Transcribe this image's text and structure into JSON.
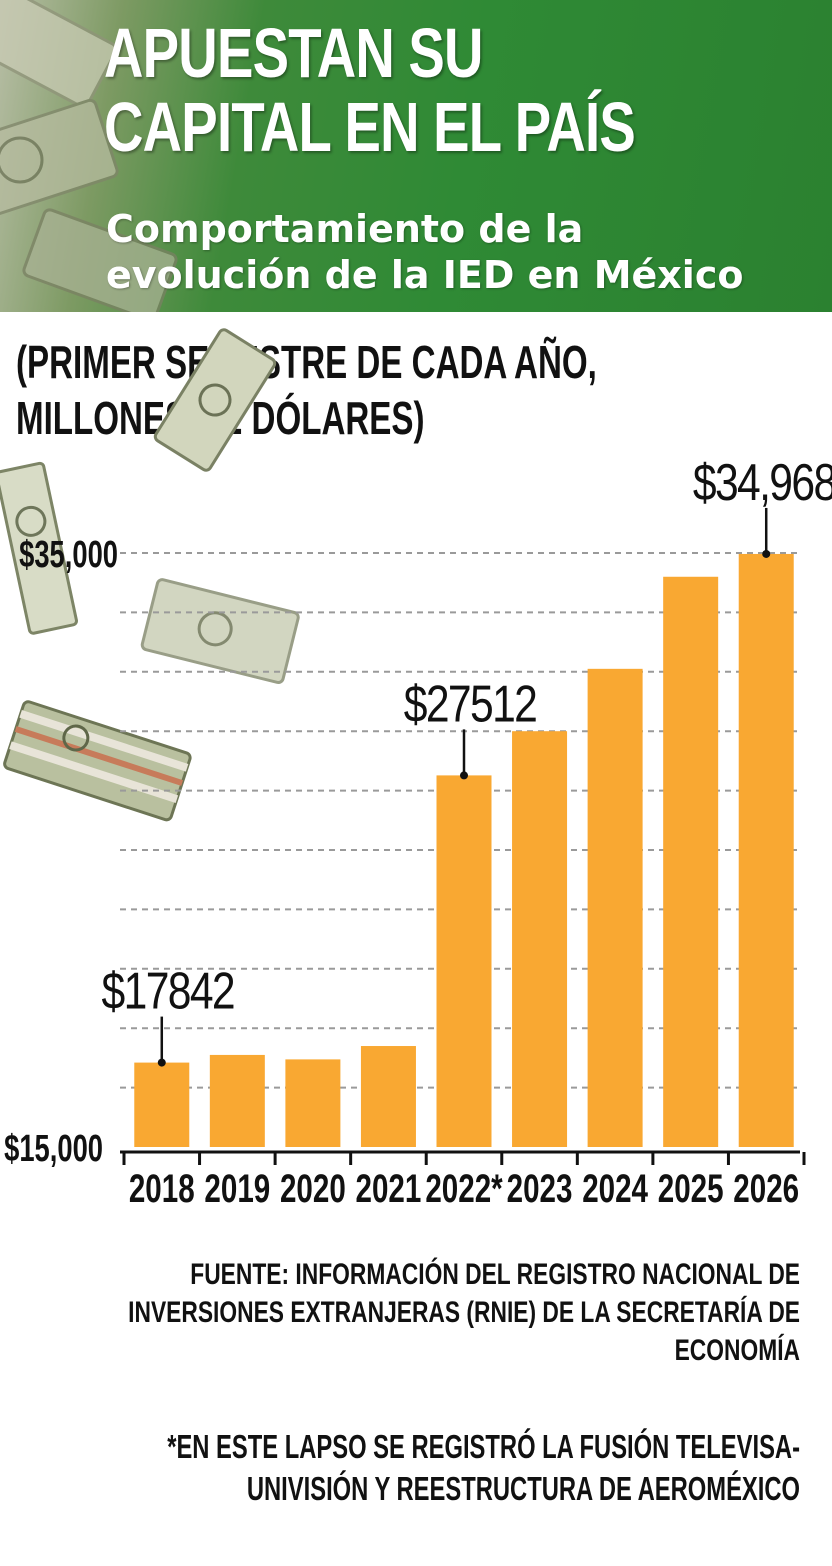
{
  "header": {
    "title_lines": [
      "APUESTAN SU",
      "CAPITAL EN EL PAÍS"
    ],
    "subtitle_lines": [
      "Comportamiento de la",
      "evolución de la IED en México"
    ]
  },
  "units_lines": [
    "(PRIMER SEMESTRE DE CADA AÑO,",
    "MILLONES DE DÓLARES)"
  ],
  "chart_data": {
    "type": "bar",
    "title": "APUESTAN SU CAPITAL EN EL PAÍS",
    "subtitle": "Comportamiento de la evolución de la IED en México",
    "xlabel": "",
    "ylabel": "(PRIMER SEMESTRE DE CADA AÑO, MILLONES DE DÓLARES)",
    "categories": [
      "2018",
      "2019",
      "2020",
      "2021",
      "2022*",
      "2023",
      "2024",
      "2025",
      "2026"
    ],
    "values": [
      17842,
      18100,
      17950,
      18400,
      27512,
      29000,
      31100,
      34200,
      34968
    ],
    "ylim": [
      15000,
      35000
    ],
    "y_tick_labels": [
      {
        "value": 35000,
        "label": "$35,000"
      },
      {
        "value": 15000,
        "label": "$15,000"
      }
    ],
    "data_labels": [
      {
        "index": 0,
        "label": "$17842"
      },
      {
        "index": 4,
        "label": "$27512"
      },
      {
        "index": 8,
        "label": "$34,968"
      }
    ],
    "gridlines": [
      15000,
      17000,
      19000,
      21000,
      23000,
      25000,
      27000,
      29000,
      31000,
      33000,
      35000
    ],
    "grid": true,
    "bar_color": "#f9a832"
  },
  "source_lines": [
    "FUENTE: INFORMACIÓN DEL REGISTRO NACIONAL DE",
    "INVERSIONES EXTRANJERAS (RNIE) DE LA SECRETARÍA DE",
    "ECONOMÍA"
  ],
  "note_lines": [
    "*EN ESTE LAPSO SE REGISTRÓ LA FUSIÓN TELEVISA-",
    "UNIVISIÓN Y REESTRUCTURA DE AEROMÉXICO"
  ],
  "decorations": {
    "icon": "dollar-bills-icon",
    "bill_color": "#9aa57f"
  }
}
